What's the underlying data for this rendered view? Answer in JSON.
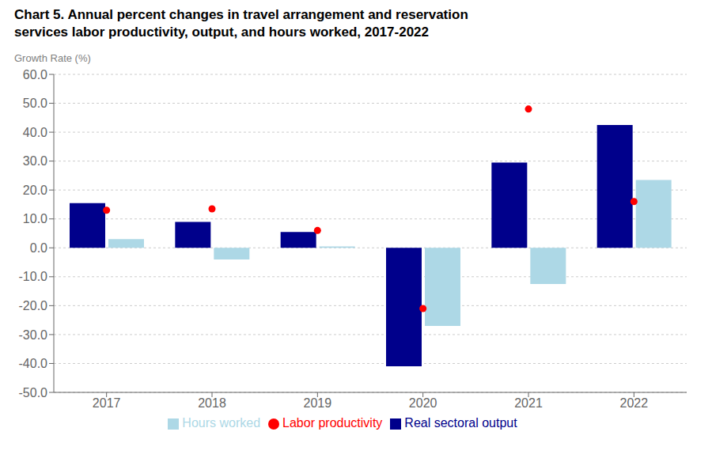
{
  "chart_data": {
    "type": "bar",
    "title": "Chart 5. Annual percent changes in travel arrangement and reservation\nservices labor productivity, output, and hours worked, 2017-2022",
    "y_label": "Growth Rate (%)",
    "categories": [
      "2017",
      "2018",
      "2019",
      "2020",
      "2021",
      "2022"
    ],
    "series": [
      {
        "name": "Real sectoral output",
        "type": "bar",
        "color": "#00008B",
        "values": [
          15.5,
          9.0,
          5.5,
          -41.0,
          29.5,
          42.5
        ]
      },
      {
        "name": "Hours worked",
        "type": "bar",
        "color": "#ADD8E6",
        "values": [
          3.0,
          -4.0,
          0.5,
          -27.0,
          -12.5,
          23.5
        ]
      },
      {
        "name": "Labor productivity",
        "type": "scatter",
        "marker": "circle",
        "color": "#FF0000",
        "values": [
          13.0,
          13.5,
          6.0,
          -21.0,
          48.0,
          16.0
        ]
      }
    ],
    "ylim": [
      -50,
      60
    ],
    "yticks": [
      {
        "value": -50,
        "label": "-50.0"
      },
      {
        "value": -40,
        "label": "-40.0"
      },
      {
        "value": -30,
        "label": "-30.0"
      },
      {
        "value": -20,
        "label": "-20.0"
      },
      {
        "value": -10,
        "label": "-10.0"
      },
      {
        "value": 0,
        "label": "0.0"
      },
      {
        "value": 10,
        "label": "10.0"
      },
      {
        "value": 20,
        "label": "20.0"
      },
      {
        "value": 30,
        "label": "30.0"
      },
      {
        "value": 40,
        "label": "40.0"
      },
      {
        "value": 50,
        "label": "50.0"
      },
      {
        "value": 60,
        "label": "60.0"
      }
    ],
    "grid": true,
    "legend": "bottom"
  }
}
